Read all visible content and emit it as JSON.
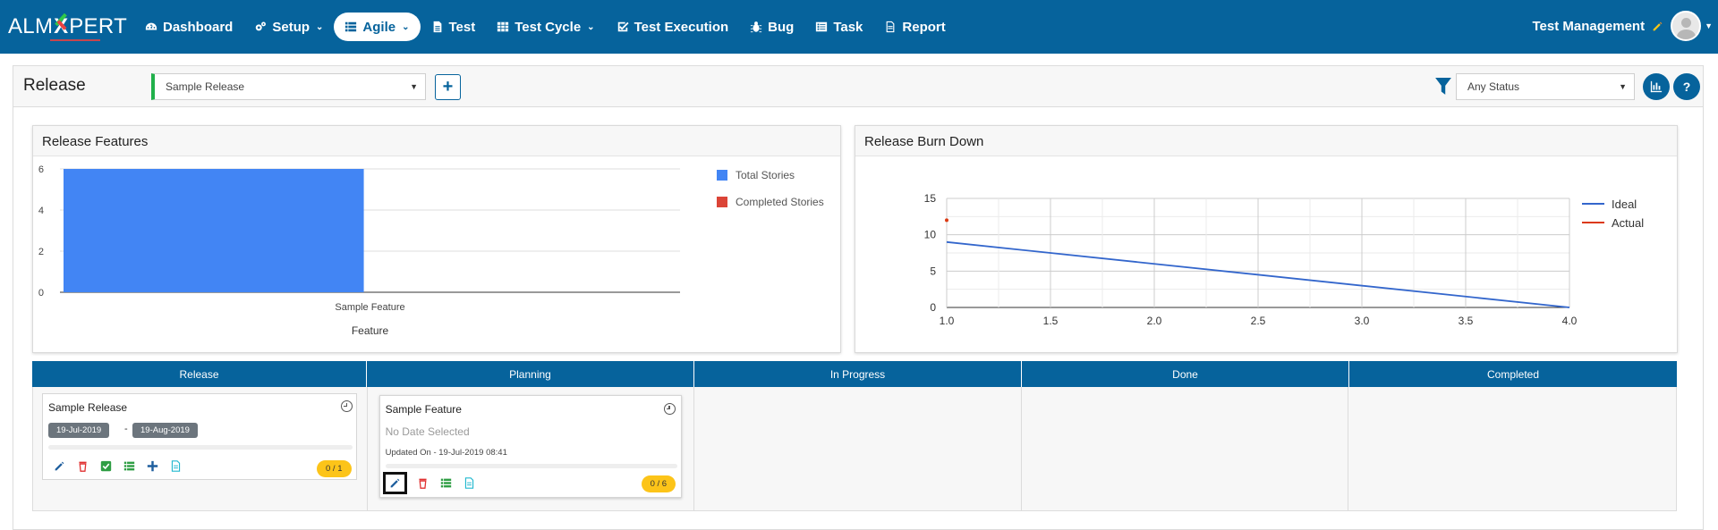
{
  "app": {
    "logo_prefix": "ALM",
    "logo_x": "X",
    "logo_suffix": "PERT",
    "user_label": "Test Management"
  },
  "nav": [
    {
      "label": "Dashboard",
      "icon": "dashboard-icon",
      "caret": false
    },
    {
      "label": "Setup",
      "icon": "gears-icon",
      "caret": true
    },
    {
      "label": "Agile",
      "icon": "list-icon",
      "caret": true,
      "active": true
    },
    {
      "label": "Test",
      "icon": "document-icon",
      "caret": false
    },
    {
      "label": "Test Cycle",
      "icon": "table-icon",
      "caret": true
    },
    {
      "label": "Test Execution",
      "icon": "check-square-icon",
      "caret": false
    },
    {
      "label": "Bug",
      "icon": "bug-icon",
      "caret": false
    },
    {
      "label": "Task",
      "icon": "task-list-icon",
      "caret": false
    },
    {
      "label": "Report",
      "icon": "report-icon",
      "caret": false
    }
  ],
  "release_panel": {
    "title": "Release",
    "release_select": "Sample Release",
    "status_select": "Any Status"
  },
  "features_card": {
    "title": "Release Features"
  },
  "burndown_card": {
    "title": "Release Burn Down"
  },
  "chart_data": [
    {
      "type": "bar",
      "title": "Release Features",
      "categories": [
        "Sample Feature"
      ],
      "series": [
        {
          "name": "Total Stories",
          "values": [
            6
          ],
          "color": "#4285f4"
        },
        {
          "name": "Completed Stories",
          "values": [
            0
          ],
          "color": "#db4437"
        }
      ],
      "xlabel": "Feature",
      "ylabel": "",
      "ylim": [
        0,
        6
      ],
      "yticks": [
        "0",
        "2",
        "4",
        "6"
      ],
      "legend": "right",
      "grid": true
    },
    {
      "type": "line",
      "title": "Release Burn Down",
      "series": [
        {
          "name": "Ideal",
          "x": [
            1.0,
            4.0
          ],
          "y": [
            9,
            0
          ],
          "color": "#3366cc"
        },
        {
          "name": "Actual",
          "x": [
            1.0
          ],
          "y": [
            12
          ],
          "color": "#dc3912"
        }
      ],
      "xlim": [
        1.0,
        4.0
      ],
      "ylim": [
        0,
        15
      ],
      "xticks": [
        "1.0",
        "1.5",
        "2.0",
        "2.5",
        "3.0",
        "3.5",
        "4.0"
      ],
      "yticks": [
        "0",
        "5",
        "10",
        "15"
      ],
      "legend": "right",
      "grid": true
    }
  ],
  "board": {
    "columns": [
      "Release",
      "Planning",
      "In Progress",
      "Done",
      "Completed"
    ],
    "release_tile": {
      "title": "Sample Release",
      "start_date": "19-Jul-2019",
      "date_separator": "-",
      "end_date": "19-Aug-2019",
      "count": "0 / 1"
    },
    "feature_tile": {
      "title": "Sample Feature",
      "date_text": "No Date Selected",
      "updated": "Updated On - 19-Jul-2019 08:41",
      "count": "0 / 6"
    }
  },
  "colors": {
    "brand": "#06639c",
    "bar_total": "#4285f4",
    "bar_completed": "#db4437",
    "badge": "#fcc419"
  }
}
